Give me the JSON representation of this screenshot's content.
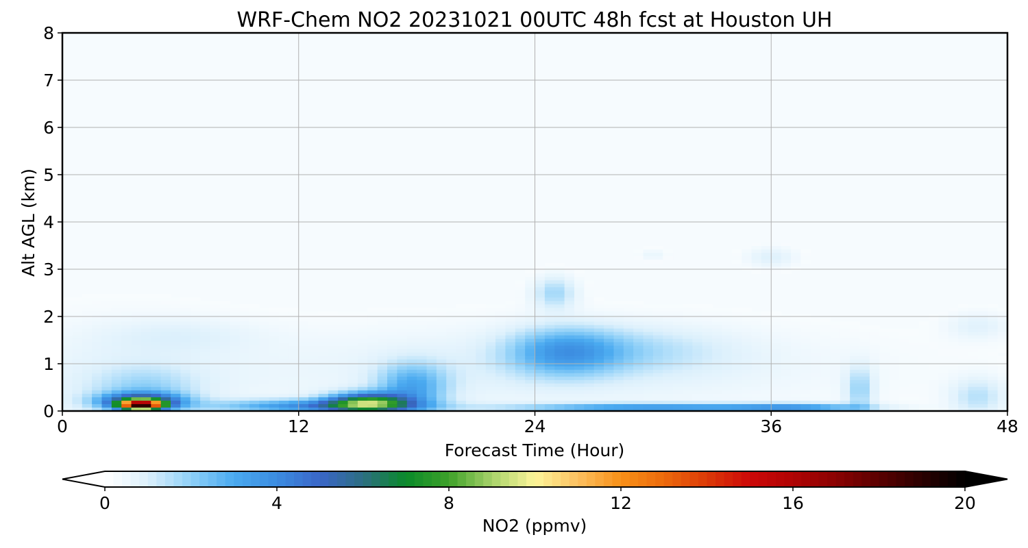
{
  "chart_data": {
    "type": "heatmap",
    "title": "WRF-Chem NO2  20231021 00UTC 48h fcst at Houston UH",
    "xlabel": "Forecast Time (Hour)",
    "ylabel": "Alt AGL (km)",
    "xlim": [
      0,
      48
    ],
    "ylim": [
      0,
      8
    ],
    "xticks": [
      "0",
      "12",
      "24",
      "36",
      "48"
    ],
    "yticks": [
      "0",
      "1",
      "2",
      "3",
      "4",
      "5",
      "6",
      "7",
      "8"
    ],
    "grid": true,
    "colorbar": {
      "label": "NO2  (ppmv)",
      "min": 0,
      "max": 20,
      "ticks": [
        "0",
        "4",
        "8",
        "12",
        "16",
        "20"
      ],
      "extend": "both",
      "stops": [
        {
          "value": 0,
          "color": "#ffffff"
        },
        {
          "value": 1,
          "color": "#dcf0fc"
        },
        {
          "value": 2,
          "color": "#8fd0f8"
        },
        {
          "value": 3,
          "color": "#4aaaf0"
        },
        {
          "value": 4,
          "color": "#3c8ce0"
        },
        {
          "value": 5,
          "color": "#3a66c8"
        },
        {
          "value": 6,
          "color": "#2d6e82"
        },
        {
          "value": 7,
          "color": "#0a8a2a"
        },
        {
          "value": 8,
          "color": "#3ea12a"
        },
        {
          "value": 9,
          "color": "#a8d26a"
        },
        {
          "value": 10,
          "color": "#fdf59a"
        },
        {
          "value": 11,
          "color": "#fcc060"
        },
        {
          "value": 12,
          "color": "#f89018"
        },
        {
          "value": 13,
          "color": "#ec6a0c"
        },
        {
          "value": 14,
          "color": "#dc3a08"
        },
        {
          "value": 15,
          "color": "#cc0808"
        },
        {
          "value": 16,
          "color": "#b00404"
        },
        {
          "value": 17,
          "color": "#8a0202"
        },
        {
          "value": 18,
          "color": "#5a0000"
        },
        {
          "value": 19,
          "color": "#2a0000"
        },
        {
          "value": 20,
          "color": "#000000"
        }
      ]
    },
    "features": [
      {
        "x": 4.0,
        "y": 0.12,
        "sx": 1.0,
        "sy": 0.09,
        "value": 14
      },
      {
        "x": 4.0,
        "y": 0.2,
        "sx": 2.0,
        "sy": 0.17,
        "value": 6
      },
      {
        "x": 4.2,
        "y": 0.45,
        "sx": 2.6,
        "sy": 0.45,
        "value": 1.2
      },
      {
        "x": 15.5,
        "y": 0.18,
        "sx": 2.0,
        "sy": 0.2,
        "value": 6.8
      },
      {
        "x": 17.8,
        "y": 0.5,
        "sx": 1.8,
        "sy": 0.5,
        "value": 2.6
      },
      {
        "x": 13.0,
        "y": 0.1,
        "sx": 5.0,
        "sy": 0.14,
        "value": 3.6
      },
      {
        "x": 25.5,
        "y": 1.25,
        "sx": 2.8,
        "sy": 0.5,
        "value": 2.6
      },
      {
        "x": 25.0,
        "y": 2.5,
        "sx": 1.1,
        "sy": 0.35,
        "value": 1.6
      },
      {
        "x": 29.0,
        "y": 1.3,
        "sx": 5.0,
        "sy": 0.5,
        "value": 1.0
      },
      {
        "x": 30.0,
        "y": 0.07,
        "sx": 7.0,
        "sy": 0.09,
        "value": 3.4
      },
      {
        "x": 37.5,
        "y": 0.07,
        "sx": 3.5,
        "sy": 0.09,
        "value": 2.6
      },
      {
        "x": 40.5,
        "y": 0.45,
        "sx": 0.7,
        "sy": 0.5,
        "value": 1.6
      },
      {
        "x": 46.5,
        "y": 0.3,
        "sx": 1.4,
        "sy": 0.4,
        "value": 1.3
      },
      {
        "x": 36.0,
        "y": 3.25,
        "sx": 1.3,
        "sy": 0.22,
        "value": 0.8
      },
      {
        "x": 46.5,
        "y": 1.8,
        "sx": 1.6,
        "sy": 0.3,
        "value": 0.7
      },
      {
        "x": 30.0,
        "y": 3.3,
        "sx": 0.7,
        "sy": 0.12,
        "value": 0.5
      },
      {
        "x": 6.0,
        "y": 1.6,
        "sx": 4.0,
        "sy": 0.35,
        "value": 0.5
      },
      {
        "x": 24.0,
        "y": 0.9,
        "sx": 16.0,
        "sy": 0.9,
        "value": 0.7
      },
      {
        "x": 3.0,
        "y": 0.6,
        "sx": 6.0,
        "sy": 1.3,
        "value": 0.6
      }
    ]
  }
}
